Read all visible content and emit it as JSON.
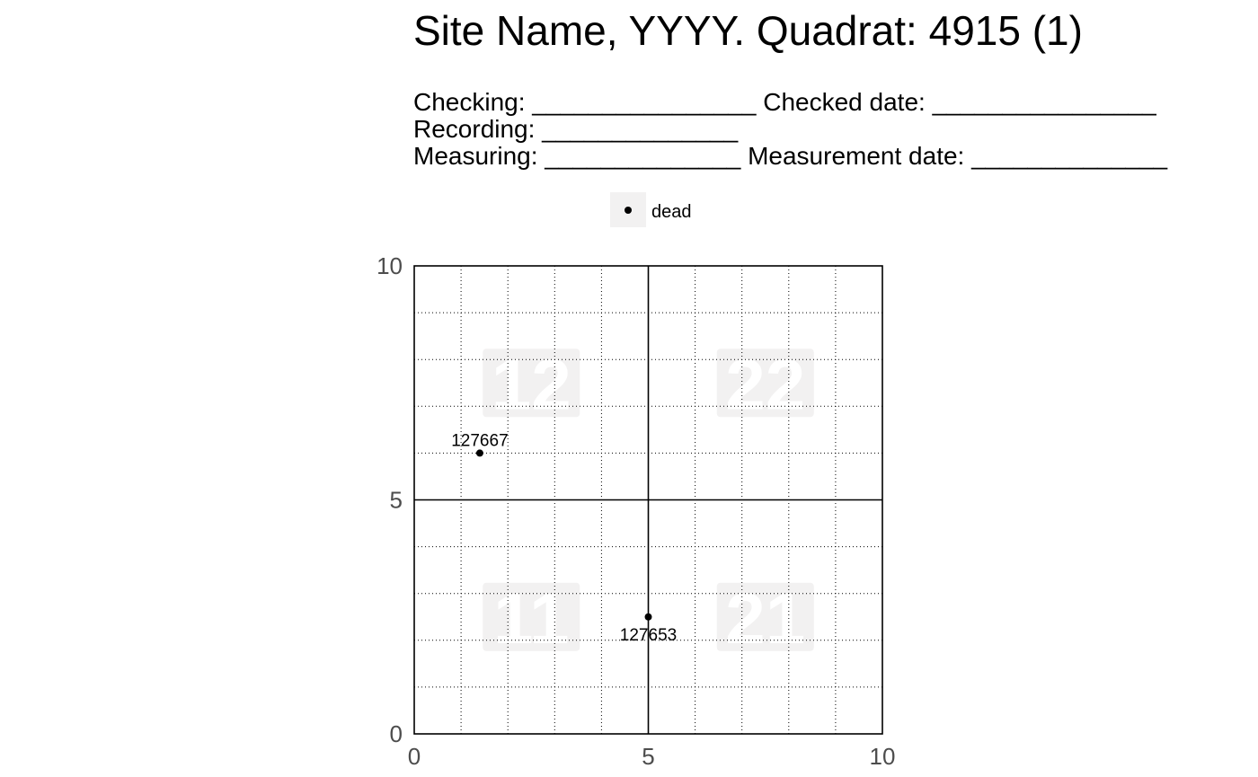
{
  "chart_data": {
    "type": "scatter",
    "title": "Site Name, YYYY. Quadrat: 4915 (1)",
    "subtitle_lines": [
      "Checking: ________________ Checked date: ________________",
      "Recording: ______________",
      "Measuring: ______________ Measurement date: ______________"
    ],
    "legend": {
      "position": "top",
      "entries": [
        "dead"
      ]
    },
    "xlim": [
      0,
      10
    ],
    "ylim": [
      0,
      10
    ],
    "x_ticks": [
      "0",
      "5",
      "10"
    ],
    "y_ticks": [
      "0",
      "5",
      "10"
    ],
    "xlabel": "",
    "ylabel": "",
    "grid": "dotted",
    "minor_grid_step": 1,
    "major_grid_lines": [
      5
    ],
    "subquadrats": [
      {
        "label": "12",
        "x": 2.5,
        "y": 7.5
      },
      {
        "label": "22",
        "x": 7.5,
        "y": 7.5
      },
      {
        "label": "11",
        "x": 2.5,
        "y": 2.5
      },
      {
        "label": "21",
        "x": 7.5,
        "y": 2.5
      }
    ],
    "series": [
      {
        "name": "dead",
        "points": [
          {
            "x": 1.4,
            "y": 6.0,
            "label": "127667",
            "label_position": "above"
          },
          {
            "x": 5.0,
            "y": 2.5,
            "label": "127653",
            "label_position": "below"
          }
        ]
      }
    ],
    "colors": {
      "point": "#000000",
      "quadrat_label": "#ffffff",
      "quadrat_label_bg": "#f2f1f1",
      "legend_key_bg": "#f2f1f1",
      "tick_text": "#4d4d4d"
    }
  }
}
